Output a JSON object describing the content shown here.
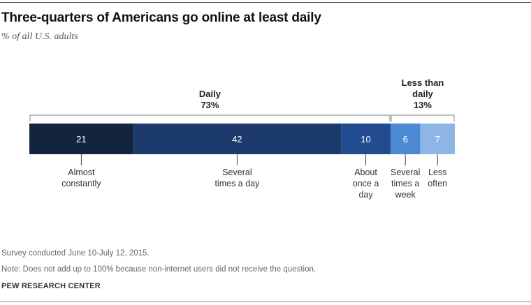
{
  "title": "Three-quarters  of Americans go online at least daily",
  "subtitle": "% of all U.S. adults",
  "chart_data": {
    "type": "bar",
    "orientation": "horizontal-stacked",
    "categories": [
      "Almost constantly",
      "Several times a day",
      "About once a day",
      "Several times a week",
      "Less often"
    ],
    "category_label_lines": [
      [
        "Almost",
        "constantly"
      ],
      [
        "Several",
        "times a day"
      ],
      [
        "About",
        "once a",
        "day"
      ],
      [
        "Several",
        "times a",
        "week"
      ],
      [
        "Less",
        "often"
      ]
    ],
    "values": [
      21,
      42,
      10,
      6,
      7
    ],
    "colors": [
      "#14243f",
      "#1c3a6b",
      "#234b8f",
      "#4d88d2",
      "#8db6e6"
    ],
    "groups": [
      {
        "label_lines": [
          "Daily",
          "73%"
        ],
        "from": 0,
        "to": 2
      },
      {
        "label_lines": [
          "Less than",
          "daily",
          "13%"
        ],
        "from": 3,
        "to": 4
      }
    ]
  },
  "notes": {
    "survey": "Survey conducted June 10-July 12, 2015.",
    "footnote": "Note: Does not add up to 100% because non-internet users did not receive the question.",
    "source": "PEW RESEARCH CENTER"
  }
}
